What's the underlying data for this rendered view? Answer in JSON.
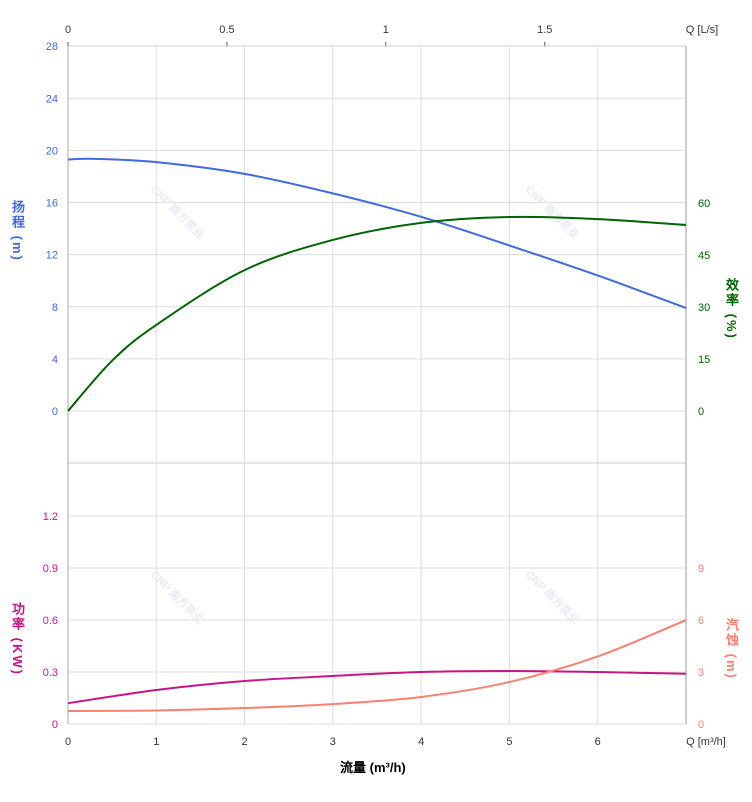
{
  "chart_data": [
    {
      "type": "line",
      "title": "",
      "xlabel": "流量 (m³/h)",
      "x_unit_label": "Q [m³/h]",
      "xlim": [
        0,
        7
      ],
      "x_ticks": [
        0,
        1,
        2,
        3,
        4,
        5,
        6
      ],
      "top_axis": {
        "unit_label": "Q [L/s]",
        "ticks": [
          0,
          0.5,
          1,
          1.5
        ]
      },
      "grid": true,
      "y_left": {
        "label": "扬程 (m)",
        "ylim": [
          0,
          28
        ],
        "ticks": [
          0,
          4,
          8,
          12,
          16,
          20,
          24,
          28
        ],
        "color": "#4169e1"
      },
      "y_right": {
        "label": "效率 (%)",
        "ticks": [
          0,
          15,
          30,
          45,
          60
        ],
        "color": "#006400"
      },
      "series": [
        {
          "name": "扬程",
          "axis": "left",
          "color": "#4169e1",
          "x": [
            0,
            0.3,
            1,
            2,
            3,
            4,
            5,
            6,
            7
          ],
          "values": [
            19.3,
            19.35,
            19.1,
            18.2,
            16.7,
            14.9,
            12.7,
            10.4,
            7.9
          ]
        },
        {
          "name": "效率",
          "axis": "right",
          "color": "#006400",
          "x": [
            0,
            0.5,
            1,
            2,
            3,
            4,
            5,
            6,
            7
          ],
          "values": [
            0,
            14.5,
            24.8,
            40.6,
            49.3,
            54.2,
            55.9,
            55.3,
            53.6
          ]
        }
      ]
    },
    {
      "type": "line",
      "title": "",
      "xlim": [
        0,
        7
      ],
      "grid": true,
      "y_left": {
        "label": "功率 (KW)",
        "ylim": [
          0,
          1.5
        ],
        "ticks": [
          0,
          0.3,
          0.6,
          0.9,
          1.2
        ],
        "color": "#c71585"
      },
      "y_right": {
        "label": "汽蚀 (m)",
        "ylim": [
          0,
          15
        ],
        "ticks": [
          0,
          3,
          6,
          9
        ],
        "color": "#fa8072"
      },
      "series": [
        {
          "name": "功率",
          "axis": "left",
          "color": "#c71585",
          "x": [
            0,
            1,
            2,
            3,
            4,
            5,
            6,
            7
          ],
          "values": [
            0.12,
            0.196,
            0.248,
            0.277,
            0.3,
            0.306,
            0.3,
            0.29
          ]
        },
        {
          "name": "汽蚀",
          "axis": "right",
          "color": "#fa8072",
          "x": [
            0,
            1,
            2,
            3,
            4,
            5,
            6,
            7
          ],
          "values": [
            0.75,
            0.78,
            0.92,
            1.15,
            1.56,
            2.42,
            3.9,
            6.0
          ]
        }
      ]
    }
  ],
  "watermark": "CNP 南方泵业"
}
